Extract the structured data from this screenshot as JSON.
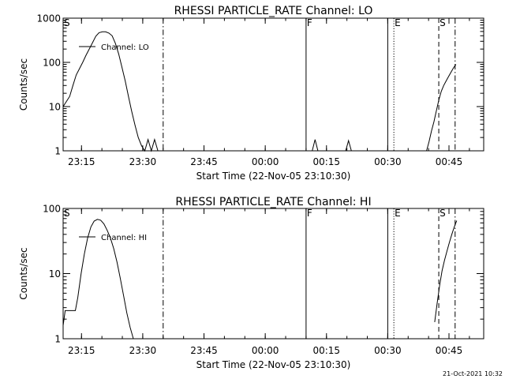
{
  "footer_timestamp": "21-Oct-2021 10:32",
  "chart_data": [
    {
      "type": "line",
      "title": "RHESSI PARTICLE_RATE Channel: LO",
      "xlabel": "Start Time (22-Nov-05 23:10:30)",
      "ylabel": "Counts/sec",
      "yscale": "log",
      "xlim_minutes_after_start": [
        0,
        103
      ],
      "ylim": [
        1,
        1000
      ],
      "x_tick_labels": [
        "23:15",
        "23:30",
        "23:45",
        "00:00",
        "00:15",
        "00:30",
        "00:45"
      ],
      "x_tick_minutes": [
        4.5,
        19.5,
        34.5,
        49.5,
        64.5,
        79.5,
        94.5
      ],
      "y_tick_values": [
        1,
        10,
        100,
        1000
      ],
      "y_tick_labels": [
        "1",
        "10",
        "100",
        "1000"
      ],
      "grid": false,
      "legend": {
        "position": "top-left",
        "entries": [
          "Channel: LO"
        ]
      },
      "markers": [
        {
          "label": "S",
          "minutes": 0,
          "style": "none"
        },
        {
          "label": "",
          "minutes": 24.5,
          "style": "dashdot"
        },
        {
          "label": "F",
          "minutes": 59.5,
          "style": "solid"
        },
        {
          "label": "",
          "minutes": 79.5,
          "style": "solid"
        },
        {
          "label": "E",
          "minutes": 81,
          "style": "dotted"
        },
        {
          "label": "S",
          "minutes": 92,
          "style": "dashed"
        },
        {
          "label": "",
          "minutes": 96,
          "style": "dashdot"
        }
      ],
      "series": [
        {
          "name": "Channel: LO",
          "segments": [
            {
              "x": [
                0,
                0.8,
                1.6,
                2.4,
                3.2,
                4.0,
                4.8,
                5.6,
                6.4,
                7.2,
                8.0,
                8.8,
                9.6,
                10.4,
                11.2,
                12.0,
                12.8,
                13.6,
                14.4,
                15.2,
                16.0,
                16.8,
                17.6,
                18.4,
                19.2,
                20.0,
                20.8,
                21.6,
                22.4,
                23.2
              ],
              "y": [
                10,
                13,
                17,
                30,
                52,
                72,
                100,
                145,
                200,
                280,
                390,
                470,
                490,
                490,
                460,
                400,
                270,
                155,
                78,
                38,
                17,
                7.8,
                3.8,
                2.0,
                1.3,
                1.0,
                1.8,
                1.0,
                1.8,
                1.0
              ]
            },
            {
              "x": [
                61,
                61.7,
                62.4
              ],
              "y": [
                1,
                1.8,
                1
              ]
            },
            {
              "x": [
                69.2,
                69.9,
                70.6
              ],
              "y": [
                1,
                1.7,
                1
              ]
            },
            {
              "x": [
                89,
                89.6,
                90.2,
                90.8,
                91.4,
                92.0,
                92.6,
                93.2,
                93.8,
                94.4,
                95.0,
                95.6,
                96.2
              ],
              "y": [
                1,
                1.6,
                2.8,
                4.5,
                8,
                14,
                22,
                30,
                38,
                48,
                60,
                75,
                90
              ]
            }
          ]
        }
      ]
    },
    {
      "type": "line",
      "title": "RHESSI PARTICLE_RATE Channel: HI",
      "xlabel": "Start Time (22-Nov-05 23:10:30)",
      "ylabel": "Counts/sec",
      "yscale": "log",
      "xlim_minutes_after_start": [
        0,
        103
      ],
      "ylim": [
        1,
        100
      ],
      "x_tick_labels": [
        "23:15",
        "23:30",
        "23:45",
        "00:00",
        "00:15",
        "00:30",
        "00:45"
      ],
      "x_tick_minutes": [
        4.5,
        19.5,
        34.5,
        49.5,
        64.5,
        79.5,
        94.5
      ],
      "y_tick_values": [
        1,
        10,
        100
      ],
      "y_tick_labels": [
        "1",
        "10",
        "100"
      ],
      "grid": false,
      "legend": {
        "position": "top-left",
        "entries": [
          "Channel: HI"
        ]
      },
      "markers": [
        {
          "label": "S",
          "minutes": 0,
          "style": "none"
        },
        {
          "label": "",
          "minutes": 24.5,
          "style": "dashdot"
        },
        {
          "label": "F",
          "minutes": 59.5,
          "style": "solid"
        },
        {
          "label": "",
          "minutes": 79.5,
          "style": "solid"
        },
        {
          "label": "E",
          "minutes": 81,
          "style": "dotted"
        },
        {
          "label": "S",
          "minutes": 92,
          "style": "dashed"
        },
        {
          "label": "",
          "minutes": 96,
          "style": "dashdot"
        }
      ],
      "series": [
        {
          "name": "Channel: HI",
          "segments": [
            {
              "x": [
                0,
                0.5,
                1.0,
                2.0,
                3.0,
                3.6,
                4.4,
                5.2,
                6.0,
                6.8,
                7.6,
                8.4,
                9.2,
                10.0,
                10.8,
                11.6,
                12.4,
                13.2,
                14.0,
                14.8,
                15.6,
                16.4,
                17.2
              ],
              "y": [
                1.6,
                2.7,
                2.7,
                2.7,
                2.7,
                4.3,
                10,
                20,
                35,
                52,
                64,
                68,
                66,
                58,
                46,
                35,
                24,
                15,
                8.5,
                4.6,
                2.5,
                1.5,
                1.0
              ]
            },
            {
              "x": [
                91.0,
                91.6,
                92.2,
                92.8,
                93.4,
                94.0,
                94.6,
                95.2,
                95.8,
                96.4
              ],
              "y": [
                1.8,
                3.5,
                6.5,
                11,
                16,
                22,
                30,
                40,
                52,
                65
              ]
            }
          ]
        }
      ]
    }
  ]
}
